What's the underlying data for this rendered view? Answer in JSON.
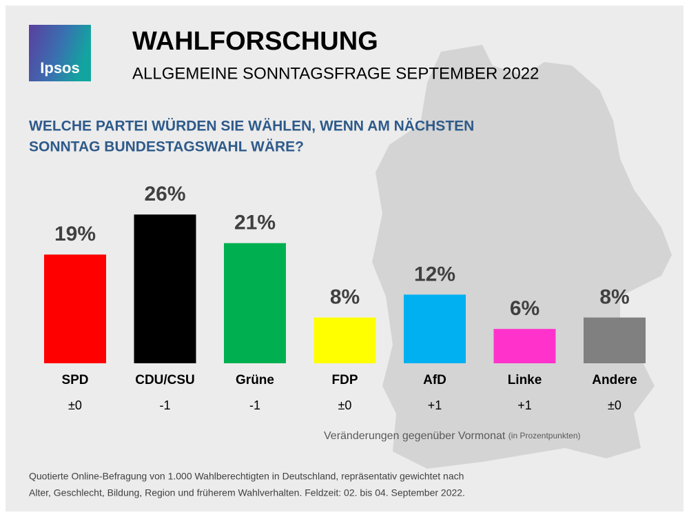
{
  "logo": "Ipsos",
  "chart_data": {
    "type": "bar",
    "title": "WAHLFORSCHUNG",
    "subtitle": "ALLGEMEINE SONNTAGSFRAGE SEPTEMBER 2022",
    "question": [
      "WELCHE PARTEI WÜRDEN SIE WÄHLEN, WENN AM NÄCHSTEN",
      "SONNTAG BUNDESTAGSWAHL WÄRE?"
    ],
    "categories": [
      "SPD",
      "CDU/CSU",
      "Grüne",
      "FDP",
      "AfD",
      "Linke",
      "Andere"
    ],
    "values": [
      19,
      26,
      21,
      8,
      12,
      6,
      8
    ],
    "value_labels": [
      "19%",
      "26%",
      "21%",
      "8%",
      "12%",
      "6%",
      "8%"
    ],
    "colors": [
      "#ff0000",
      "#000000",
      "#00b050",
      "#ffff00",
      "#00b0f0",
      "#ff33cc",
      "#808080"
    ],
    "changes": [
      "±0",
      "-1",
      "-1",
      "±0",
      "+1",
      "+1",
      "±0"
    ],
    "changes_note": "Veränderungen gegenüber Vormonat",
    "changes_unit": "(in Prozentpunkten)",
    "footnote": [
      "Quotierte Online-Befragung von 1.000 Wahlberechtigten in Deutschland, repräsentativ gewichtet nach",
      "Alter, Geschlecht, Bildung, Region und früherem Wahlverhalten. Feldzeit: 02. bis 04. September 2022."
    ]
  }
}
